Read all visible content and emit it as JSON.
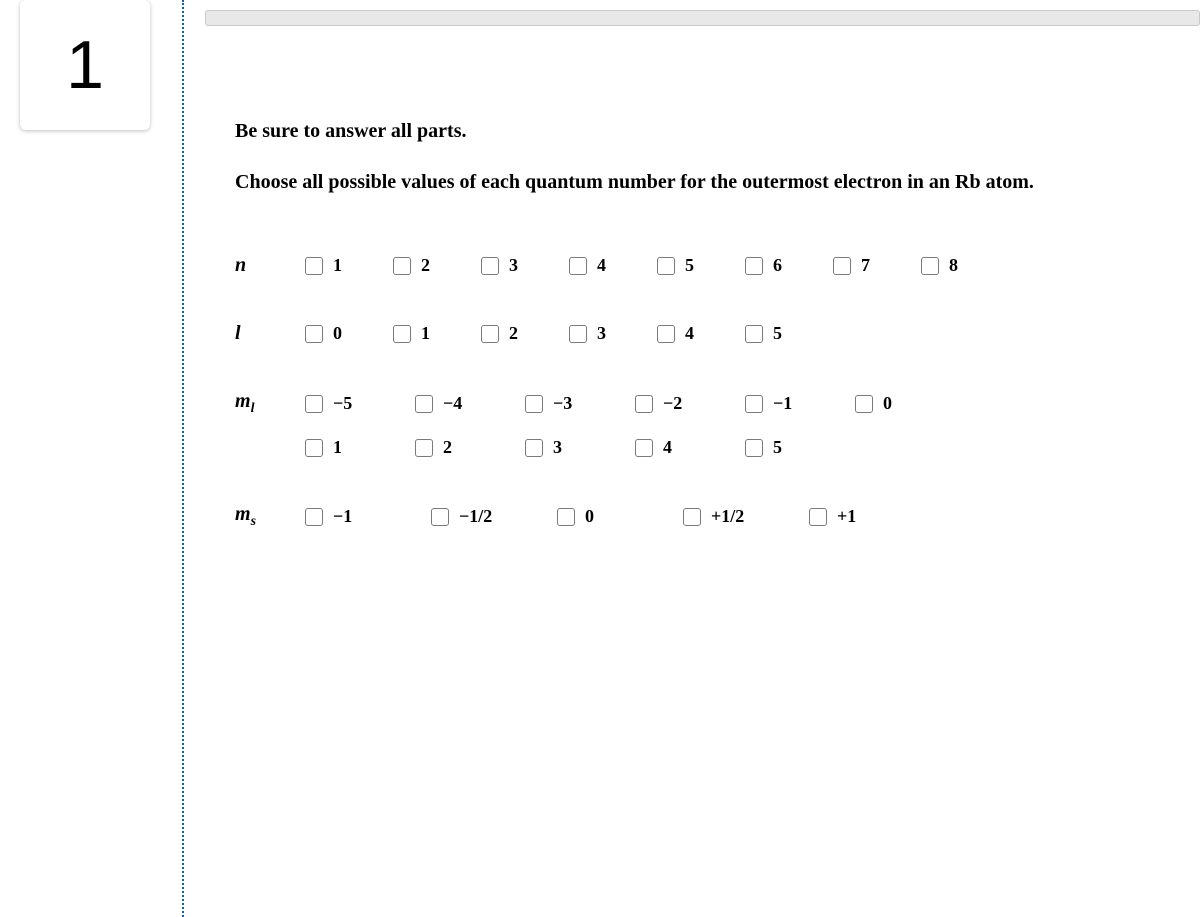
{
  "question_number": "1",
  "instruction": "Be sure to answer all parts.",
  "prompt": "Choose all possible values of each quantum number for the outermost electron in an Rb atom.",
  "rows": {
    "n": {
      "label_html": "n",
      "options": [
        "1",
        "2",
        "3",
        "4",
        "5",
        "6",
        "7",
        "8"
      ]
    },
    "l": {
      "label_html": "l",
      "options": [
        "0",
        "1",
        "2",
        "3",
        "4",
        "5"
      ]
    },
    "ml": {
      "label_html": "m<sub class='sub'>l</sub>",
      "row1": [
        "−5",
        "−4",
        "−3",
        "−2",
        "−1",
        "0"
      ],
      "row2": [
        "1",
        "2",
        "3",
        "4",
        "5"
      ]
    },
    "ms": {
      "label_html": "m<sub class='sub'>s</sub>",
      "options": [
        "−1",
        "−1/2",
        "0",
        "+1/2",
        "+1"
      ]
    }
  },
  "colors": {
    "divider": "#185abc",
    "checkbox_border": "#7a7a7a",
    "topbar_bg": "#e8e8e8",
    "topbar_border": "#c9c9c9"
  },
  "layout": {
    "n_opt_width": 50,
    "l_opt_width": 50,
    "ml_opt_width": 72,
    "ms_opt_width": 88
  },
  "fonts": {
    "body": "Georgia, Times New Roman, serif",
    "qnum": "Helvetica Neue, Arial, sans-serif"
  }
}
